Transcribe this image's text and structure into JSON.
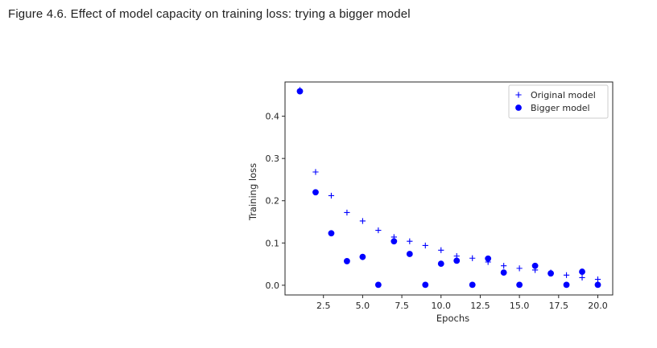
{
  "figure": {
    "title": "Figure 4.6. Effect of model capacity on training loss: trying a bigger model"
  },
  "chart_data": {
    "type": "scatter",
    "title": "",
    "xlabel": "Epochs",
    "ylabel": "Training loss",
    "xlim": [
      0.05,
      20.95
    ],
    "ylim": [
      -0.023,
      0.481
    ],
    "xticks": [
      2.5,
      5.0,
      7.5,
      10.0,
      12.5,
      15.0,
      17.5,
      20.0
    ],
    "xtick_labels": [
      "2.5",
      "5.0",
      "7.5",
      "10.0",
      "12.5",
      "15.0",
      "17.5",
      "20.0"
    ],
    "yticks": [
      0.0,
      0.1,
      0.2,
      0.3,
      0.4
    ],
    "ytick_labels": [
      "0.0",
      "0.1",
      "0.2",
      "0.3",
      "0.4"
    ],
    "grid": false,
    "legend_position": "top-right",
    "series": [
      {
        "name": "Original model",
        "marker": "plus",
        "color": "#0000ff",
        "x": [
          1,
          2,
          3,
          4,
          5,
          6,
          7,
          8,
          9,
          10,
          11,
          12,
          13,
          14,
          15,
          16,
          17,
          18,
          19,
          20
        ],
        "y": [
          0.462,
          0.268,
          0.212,
          0.172,
          0.152,
          0.13,
          0.114,
          0.104,
          0.094,
          0.083,
          0.069,
          0.064,
          0.055,
          0.046,
          0.04,
          0.036,
          0.03,
          0.024,
          0.018,
          0.014
        ]
      },
      {
        "name": "Bigger model",
        "marker": "circle",
        "color": "#0000ff",
        "x": [
          1,
          2,
          3,
          4,
          5,
          6,
          7,
          8,
          9,
          10,
          11,
          12,
          13,
          14,
          15,
          16,
          17,
          18,
          19,
          20
        ],
        "y": [
          0.459,
          0.22,
          0.123,
          0.057,
          0.067,
          0.001,
          0.104,
          0.074,
          0.001,
          0.051,
          0.058,
          0.001,
          0.063,
          0.03,
          0.001,
          0.046,
          0.028,
          0.001,
          0.032,
          0.001
        ]
      }
    ]
  }
}
